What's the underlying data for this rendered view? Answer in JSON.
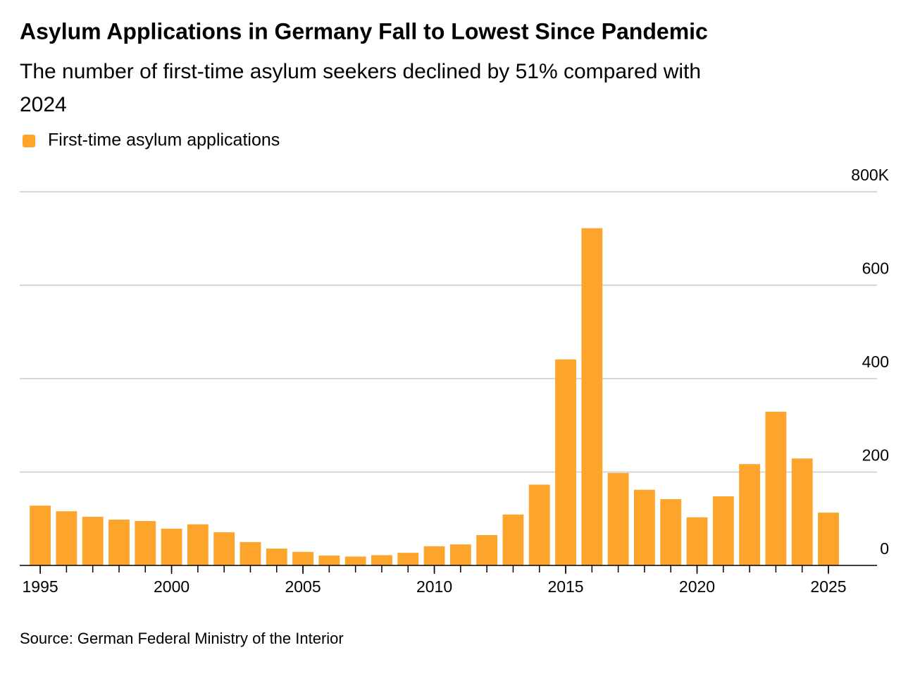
{
  "chart_data": {
    "type": "bar",
    "title": "Asylum Applications in Germany Fall to Lowest Since Pandemic",
    "subtitle": [
      "The number of first-time asylum seekers declined by 51% compared with",
      "2024"
    ],
    "source": "Source: German Federal Ministry of the Interior",
    "series": [
      {
        "name": "First-time asylum applications",
        "color": "#fca42c",
        "values": [
          128,
          116,
          104,
          98,
          95,
          78.6,
          88,
          71,
          50,
          36,
          29,
          21,
          19,
          22,
          27,
          41,
          45,
          65,
          109,
          173,
          441,
          722,
          198,
          162,
          142,
          103,
          148,
          217,
          329,
          229,
          113
        ]
      }
    ],
    "x": [
      1995,
      1996,
      1997,
      1998,
      1999,
      2000,
      2001,
      2002,
      2003,
      2004,
      2005,
      2006,
      2007,
      2008,
      2009,
      2010,
      2011,
      2012,
      2013,
      2014,
      2015,
      2016,
      2017,
      2018,
      2019,
      2020,
      2021,
      2022,
      2023,
      2024,
      2025
    ],
    "xlim": [
      1994.22,
      2026.85
    ],
    "xticks": [
      1995,
      2000,
      2005,
      2010,
      2015,
      2020,
      2025
    ],
    "ylim": [
      0,
      800
    ],
    "yticks": [
      0,
      200,
      400,
      600,
      {
        "value": 800,
        "label": "800K"
      }
    ],
    "grid": true
  }
}
